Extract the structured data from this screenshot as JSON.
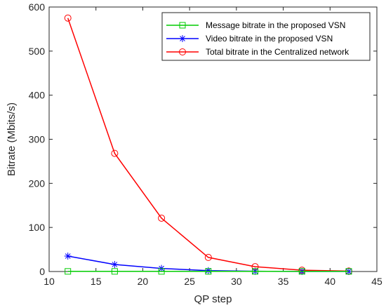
{
  "chart_data": {
    "type": "line",
    "xlabel": "QP step",
    "ylabel": "Bitrate (Mbits/s)",
    "xlim": [
      10,
      45
    ],
    "ylim": [
      0,
      600
    ],
    "x_ticks": [
      10,
      15,
      20,
      25,
      30,
      35,
      40,
      45
    ],
    "y_ticks": [
      0,
      100,
      200,
      300,
      400,
      500,
      600
    ],
    "grid": false,
    "legend_position": "top-right",
    "x": [
      12,
      17,
      22,
      27,
      32,
      37,
      42
    ],
    "series": [
      {
        "name": "Message bitrate in the proposed VSN",
        "marker": "square",
        "color": "#00cc00",
        "values": [
          0.3,
          0.3,
          0.3,
          0.3,
          0.3,
          0.3,
          0.3
        ]
      },
      {
        "name": "Video bitrate in the proposed VSN",
        "marker": "asterisk",
        "color": "#0000ff",
        "values": [
          35,
          16,
          7,
          2,
          0.5,
          0.2,
          0.1
        ]
      },
      {
        "name": "Total bitrate in the Centralized network",
        "marker": "circle",
        "color": "#ff0000",
        "values": [
          575,
          268,
          121,
          32,
          11,
          3,
          1
        ]
      }
    ]
  }
}
